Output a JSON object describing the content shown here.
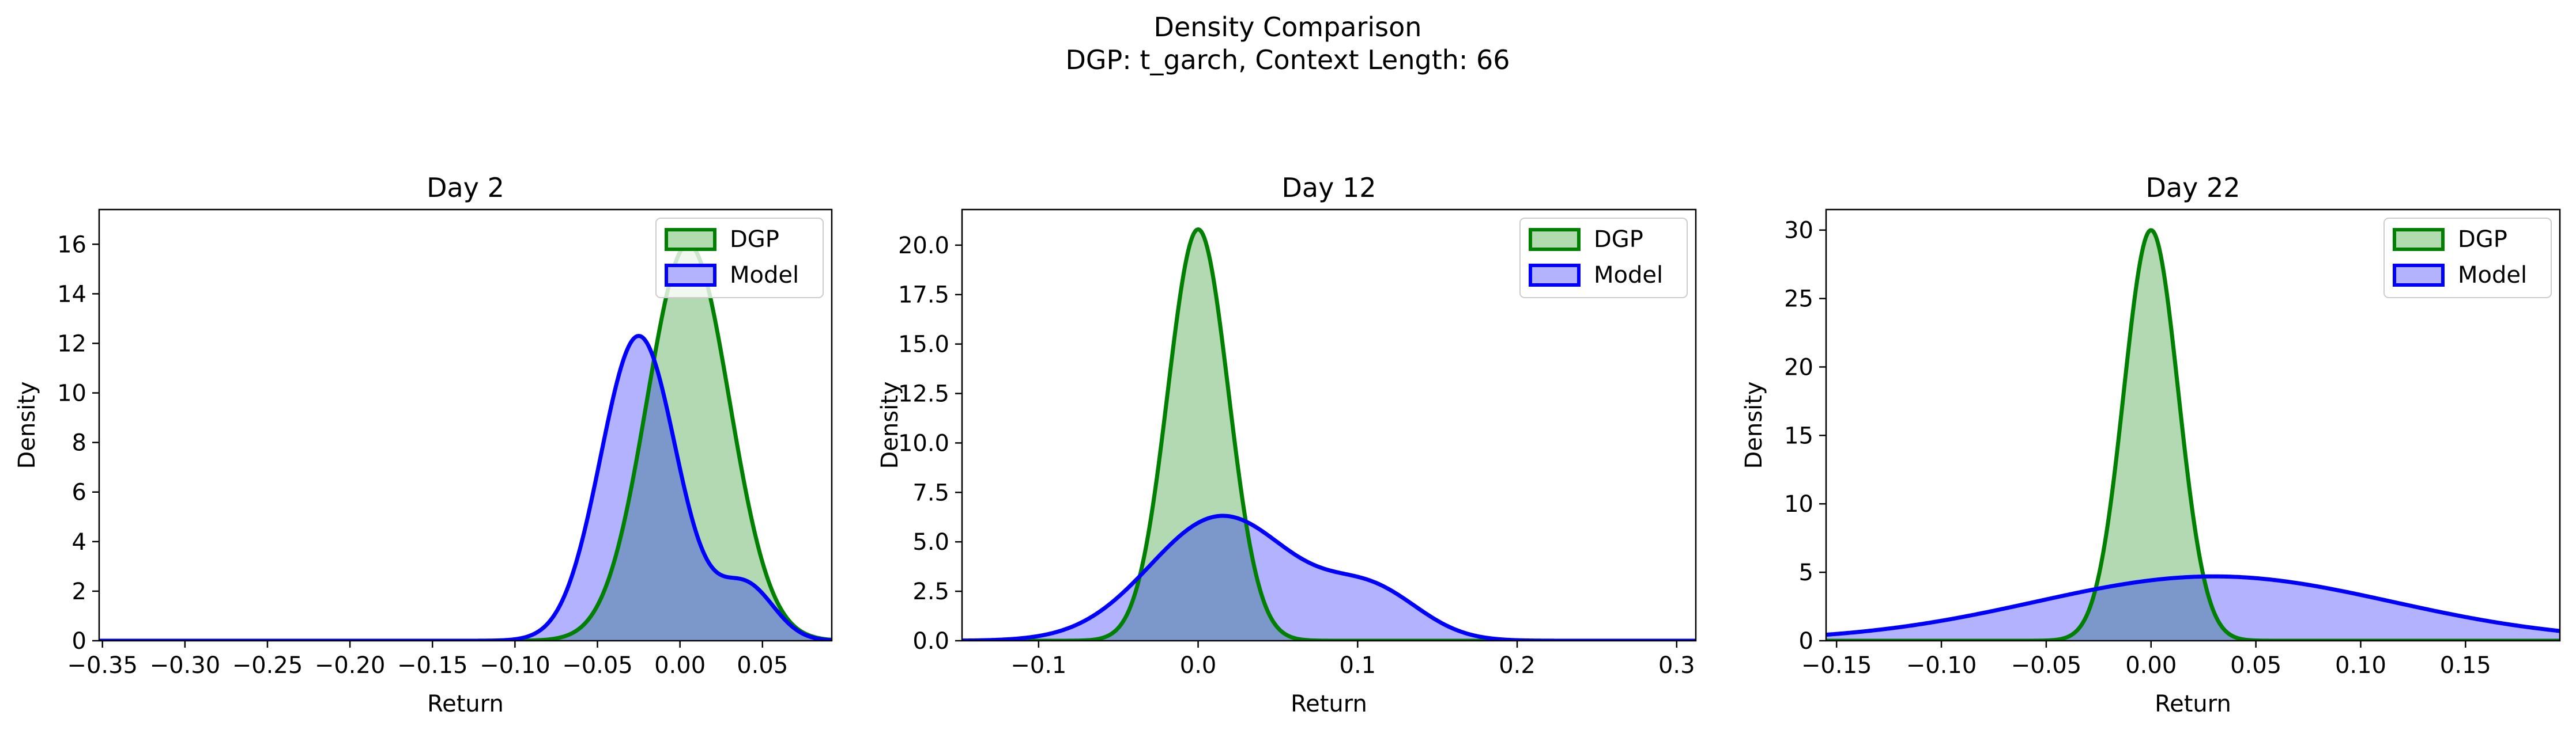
{
  "figure": {
    "title": "Density Comparison",
    "subtitle": "DGP: t_garch, Context Length: 66"
  },
  "colors": {
    "dgp_line": "#008000",
    "dgp_fill": "#b2dbb0",
    "model_line": "#0000ff",
    "model_fill": "#b2b2fd",
    "overlap_fill": "#7f9acb"
  },
  "chart_data": [
    {
      "type": "area",
      "title": "Day 2",
      "xlabel": "Return",
      "ylabel": "Density",
      "xlim": [
        -0.352,
        0.092
      ],
      "ylim": [
        0,
        17.4
      ],
      "xticks": [
        -0.35,
        -0.3,
        -0.25,
        -0.2,
        -0.15,
        -0.1,
        -0.05,
        0.0,
        0.05
      ],
      "xtick_labels": [
        "−0.35",
        "−0.30",
        "−0.25",
        "−0.20",
        "−0.15",
        "−0.10",
        "−0.05",
        "0.00",
        "0.05"
      ],
      "yticks": [
        0,
        2,
        4,
        6,
        8,
        10,
        12,
        14,
        16
      ],
      "ytick_labels": [
        "0",
        "2",
        "4",
        "6",
        "8",
        "10",
        "12",
        "14",
        "16"
      ],
      "legend": "top-right",
      "series": [
        {
          "name": "DGP",
          "curve": "gaussian",
          "mean": 0.005,
          "sd": 0.025,
          "peak": 16.0
        },
        {
          "name": "Model",
          "curve": "gaussian_mix",
          "components": [
            {
              "mean": -0.025,
              "sd": 0.023,
              "peak": 12.3
            },
            {
              "mean": 0.04,
              "sd": 0.017,
              "peak": 2.2
            }
          ]
        }
      ]
    },
    {
      "type": "area",
      "title": "Day 12",
      "xlabel": "Return",
      "ylabel": "Density",
      "xlim": [
        -0.148,
        0.312
      ],
      "ylim": [
        0,
        21.8
      ],
      "xticks": [
        -0.1,
        0.0,
        0.1,
        0.2,
        0.3
      ],
      "xtick_labels": [
        "−0.1",
        "0.0",
        "0.1",
        "0.2",
        "0.3"
      ],
      "yticks": [
        0,
        2.5,
        5,
        7.5,
        10,
        12.5,
        15,
        17.5,
        20
      ],
      "ytick_labels": [
        "0.0",
        "2.5",
        "5.0",
        "7.5",
        "10.0",
        "12.5",
        "15.0",
        "17.5",
        "20.0"
      ],
      "legend": "top-right",
      "series": [
        {
          "name": "DGP",
          "curve": "gaussian",
          "mean": 0.0,
          "sd": 0.019,
          "peak": 20.8
        },
        {
          "name": "Model",
          "curve": "gaussian_mix",
          "components": [
            {
              "mean": 0.015,
              "sd": 0.045,
              "peak": 6.3
            },
            {
              "mean": 0.11,
              "sd": 0.03,
              "peak": 2.3
            }
          ]
        }
      ]
    },
    {
      "type": "area",
      "title": "Day 22",
      "xlabel": "Return",
      "ylabel": "Density",
      "xlim": [
        -0.155,
        0.195
      ],
      "ylim": [
        0,
        31.5
      ],
      "xticks": [
        -0.15,
        -0.1,
        -0.05,
        0.0,
        0.05,
        0.1,
        0.15
      ],
      "xtick_labels": [
        "−0.15",
        "−0.10",
        "−0.05",
        "0.00",
        "0.05",
        "0.10",
        "0.15"
      ],
      "yticks": [
        0,
        5,
        10,
        15,
        20,
        25,
        30
      ],
      "ytick_labels": [
        "0",
        "5",
        "10",
        "15",
        "20",
        "25",
        "30"
      ],
      "legend": "top-right",
      "series": [
        {
          "name": "DGP",
          "curve": "gaussian",
          "mean": 0.0,
          "sd": 0.013,
          "peak": 30.0
        },
        {
          "name": "Model",
          "curve": "gaussian_mix",
          "components": [
            {
              "mean": 0.03,
              "sd": 0.085,
              "peak": 4.7
            }
          ]
        }
      ]
    }
  ]
}
